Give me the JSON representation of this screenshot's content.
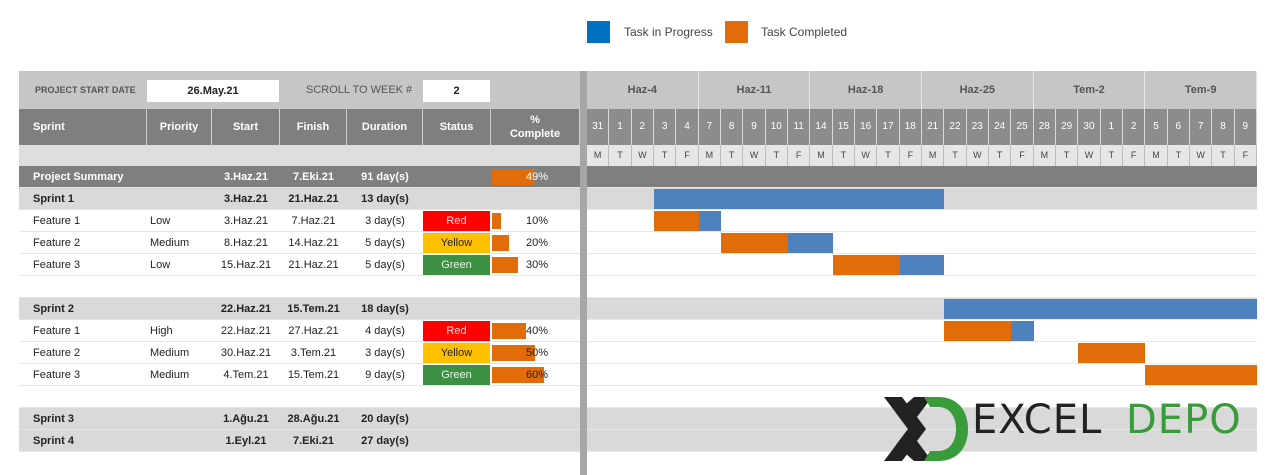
{
  "legend": {
    "in_progress_label": "Task in Progress",
    "completed_label": "Task Completed",
    "in_progress_color": "#0070c0",
    "completed_color": "#e36c0a"
  },
  "header": {
    "project_start_label": "PROJECT START DATE",
    "project_start_value": "26.May.21",
    "scroll_label": "SCROLL TO WEEK #",
    "scroll_value": "2"
  },
  "columns": {
    "sprint": "Sprint",
    "priority": "Priority",
    "start": "Start",
    "finish": "Finish",
    "duration": "Duration",
    "status": "Status",
    "complete_line1": "%",
    "complete_line2": "Complete"
  },
  "weeks": [
    "Haz-4",
    "Haz-11",
    "Haz-18",
    "Haz-25",
    "Tem-2",
    "Tem-9"
  ],
  "days": [
    "31",
    "1",
    "2",
    "3",
    "4",
    "7",
    "8",
    "9",
    "10",
    "11",
    "14",
    "15",
    "16",
    "17",
    "18",
    "21",
    "22",
    "23",
    "24",
    "25",
    "28",
    "29",
    "30",
    "1",
    "2",
    "5",
    "6",
    "7",
    "8",
    "9"
  ],
  "weekdays": [
    "M",
    "T",
    "W",
    "T",
    "F",
    "M",
    "T",
    "W",
    "T",
    "F",
    "M",
    "T",
    "W",
    "T",
    "F",
    "M",
    "T",
    "W",
    "T",
    "F",
    "M",
    "T",
    "W",
    "T",
    "F",
    "M",
    "T",
    "W",
    "T",
    "F"
  ],
  "rows": [
    {
      "type": "summary",
      "name": "Project Summary",
      "priority": "",
      "start": "3.Haz.21",
      "finish": "7.Eki.21",
      "duration": "91 day(s)",
      "status": "",
      "complete": 0.49,
      "complete_text": "49%"
    },
    {
      "type": "sprint",
      "name": "Sprint 1",
      "priority": "",
      "start": "3.Haz.21",
      "finish": "21.Haz.21",
      "duration": "13 day(s)",
      "status": "",
      "complete": null,
      "complete_text": ""
    },
    {
      "type": "feature",
      "name": "Feature 1",
      "priority": "Low",
      "start": "3.Haz.21",
      "finish": "7.Haz.21",
      "duration": "3 day(s)",
      "status": "Red",
      "complete": 0.1,
      "complete_text": "10%"
    },
    {
      "type": "feature",
      "name": "Feature 2",
      "priority": "Medium",
      "start": "8.Haz.21",
      "finish": "14.Haz.21",
      "duration": "5 day(s)",
      "status": "Yellow",
      "complete": 0.2,
      "complete_text": "20%"
    },
    {
      "type": "feature",
      "name": "Feature 3",
      "priority": "Low",
      "start": "15.Haz.21",
      "finish": "21.Haz.21",
      "duration": "5 day(s)",
      "status": "Green",
      "complete": 0.3,
      "complete_text": "30%"
    },
    {
      "type": "blank"
    },
    {
      "type": "sprint",
      "name": "Sprint 2",
      "priority": "",
      "start": "22.Haz.21",
      "finish": "15.Tem.21",
      "duration": "18 day(s)",
      "status": "",
      "complete": null,
      "complete_text": ""
    },
    {
      "type": "feature",
      "name": "Feature 1",
      "priority": "High",
      "start": "22.Haz.21",
      "finish": "27.Haz.21",
      "duration": "4 day(s)",
      "status": "Red",
      "complete": 0.4,
      "complete_text": "40%"
    },
    {
      "type": "feature",
      "name": "Feature 2",
      "priority": "Medium",
      "start": "30.Haz.21",
      "finish": "3.Tem.21",
      "duration": "3 day(s)",
      "status": "Yellow",
      "complete": 0.5,
      "complete_text": "50%"
    },
    {
      "type": "feature",
      "name": "Feature 3",
      "priority": "Medium",
      "start": "4.Tem.21",
      "finish": "15.Tem.21",
      "duration": "9 day(s)",
      "status": "Green",
      "complete": 0.6,
      "complete_text": "60%"
    },
    {
      "type": "blank"
    },
    {
      "type": "sprint",
      "name": "Sprint 3",
      "priority": "",
      "start": "1.Ağu.21",
      "finish": "28.Ağu.21",
      "duration": "20 day(s)",
      "status": "",
      "complete": null,
      "complete_text": ""
    },
    {
      "type": "sprint",
      "name": "Sprint 4",
      "priority": "",
      "start": "1.Eyl.21",
      "finish": "7.Eki.21",
      "duration": "27 day(s)",
      "status": "",
      "complete": null,
      "complete_text": ""
    }
  ],
  "gantt": [
    {
      "row": 1,
      "segments": [
        {
          "start_day": 3,
          "end_day": 16,
          "state": "progress"
        }
      ]
    },
    {
      "row": 2,
      "segments": [
        {
          "start_day": 3,
          "end_day": 5,
          "state": "completed"
        },
        {
          "start_day": 5,
          "end_day": 6,
          "state": "progress"
        }
      ]
    },
    {
      "row": 3,
      "segments": [
        {
          "start_day": 6,
          "end_day": 9,
          "state": "completed"
        },
        {
          "start_day": 9,
          "end_day": 11,
          "state": "progress"
        }
      ]
    },
    {
      "row": 4,
      "segments": [
        {
          "start_day": 11,
          "end_day": 14,
          "state": "completed"
        },
        {
          "start_day": 14,
          "end_day": 16,
          "state": "progress"
        }
      ]
    },
    {
      "row": 6,
      "segments": [
        {
          "start_day": 16,
          "end_day": 30,
          "state": "progress"
        }
      ]
    },
    {
      "row": 7,
      "segments": [
        {
          "start_day": 16,
          "end_day": 19,
          "state": "completed"
        },
        {
          "start_day": 19,
          "end_day": 20,
          "state": "progress"
        }
      ]
    },
    {
      "row": 8,
      "segments": [
        {
          "start_day": 22,
          "end_day": 25,
          "state": "completed"
        }
      ]
    },
    {
      "row": 9,
      "segments": [
        {
          "start_day": 25,
          "end_day": 30,
          "state": "completed"
        }
      ]
    }
  ],
  "status_colors": {
    "Red": "#ff0000",
    "Yellow": "#ffc000",
    "Green": "#3c8f43"
  },
  "bar_colors": {
    "progress": "#4f81bd",
    "completed": "#e36c0a"
  },
  "logo": {
    "part1": "EXCEL",
    "part2": "DEPO"
  }
}
